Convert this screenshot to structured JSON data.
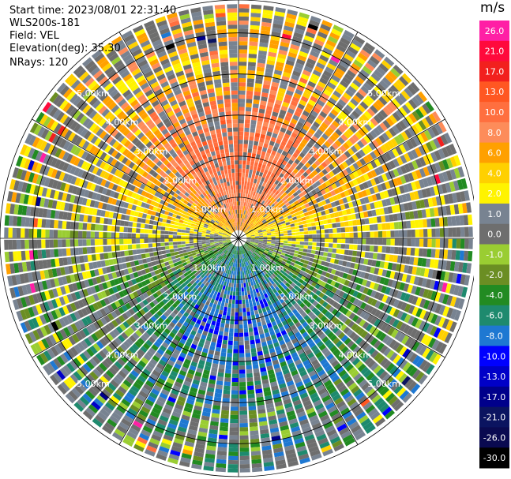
{
  "info": {
    "start": "Start time: 2023/08/01 22:31:40",
    "instrument": "WLS200s-181",
    "field": "Field: VEL",
    "elevation": "Elevation(deg): 35.30",
    "nrays": "NRays: 120"
  },
  "colorbar": {
    "title": "m/s",
    "bins": [
      {
        "label": "26.0",
        "color": "#ff1fa5"
      },
      {
        "label": "21.0",
        "color": "#ff0a3c"
      },
      {
        "label": "17.0",
        "color": "#f2201e"
      },
      {
        "label": "13.0",
        "color": "#ff5722"
      },
      {
        "label": "10.0",
        "color": "#ff6f3f"
      },
      {
        "label": "8.0",
        "color": "#fd8c5a"
      },
      {
        "label": "6.0",
        "color": "#ffa000"
      },
      {
        "label": "4.0",
        "color": "#ffd000"
      },
      {
        "label": "2.0",
        "color": "#fff300"
      },
      {
        "label": "1.0",
        "color": "#788391"
      },
      {
        "label": "0.0",
        "color": "#6e6e6e"
      },
      {
        "label": "-1.0",
        "color": "#9acd32"
      },
      {
        "label": "-2.0",
        "color": "#6b8e23"
      },
      {
        "label": "-4.0",
        "color": "#228b22"
      },
      {
        "label": "-6.0",
        "color": "#1e8a6e"
      },
      {
        "label": "-8.0",
        "color": "#1e78d2"
      },
      {
        "label": "-10.0",
        "color": "#0000ff"
      },
      {
        "label": "-13.0",
        "color": "#0000c8"
      },
      {
        "label": "-17.0",
        "color": "#00008b"
      },
      {
        "label": "-21.0",
        "color": "#0b1460"
      },
      {
        "label": "-26.0",
        "color": "#0a0a50"
      },
      {
        "label": "-30.0",
        "color": "#000000"
      }
    ]
  },
  "chart_data": {
    "type": "heatmap",
    "subtype": "ppi-polar",
    "field": "VEL",
    "units": "m/s",
    "n_rays": 120,
    "range_rings_km": [
      1.0,
      2.0,
      3.0,
      4.0,
      5.0
    ],
    "max_range_km": 5.8,
    "ring_labels": [
      "1.00km",
      "2.00km",
      "3.00km",
      "4.00km",
      "5.00km"
    ],
    "spoke_angles_deg": [
      0,
      30,
      60,
      90,
      120,
      150,
      180,
      210,
      240,
      270,
      300,
      330
    ],
    "pattern_summary": [
      {
        "sector": "north (upwind)",
        "velocity_ms": [
          6.0,
          10.0
        ],
        "note": "orange/red core near 1-3 km"
      },
      {
        "sector": "east-west band",
        "velocity_ms": [
          2.0,
          6.0
        ],
        "note": "yellow"
      },
      {
        "sector": "south (downwind)",
        "velocity_ms": [
          -6.0,
          -2.0
        ],
        "note": "green/olive"
      },
      {
        "sector": "outer edge",
        "velocity_ms": [
          -30.0,
          26.0
        ],
        "note": "noisy mixed colors"
      }
    ]
  }
}
